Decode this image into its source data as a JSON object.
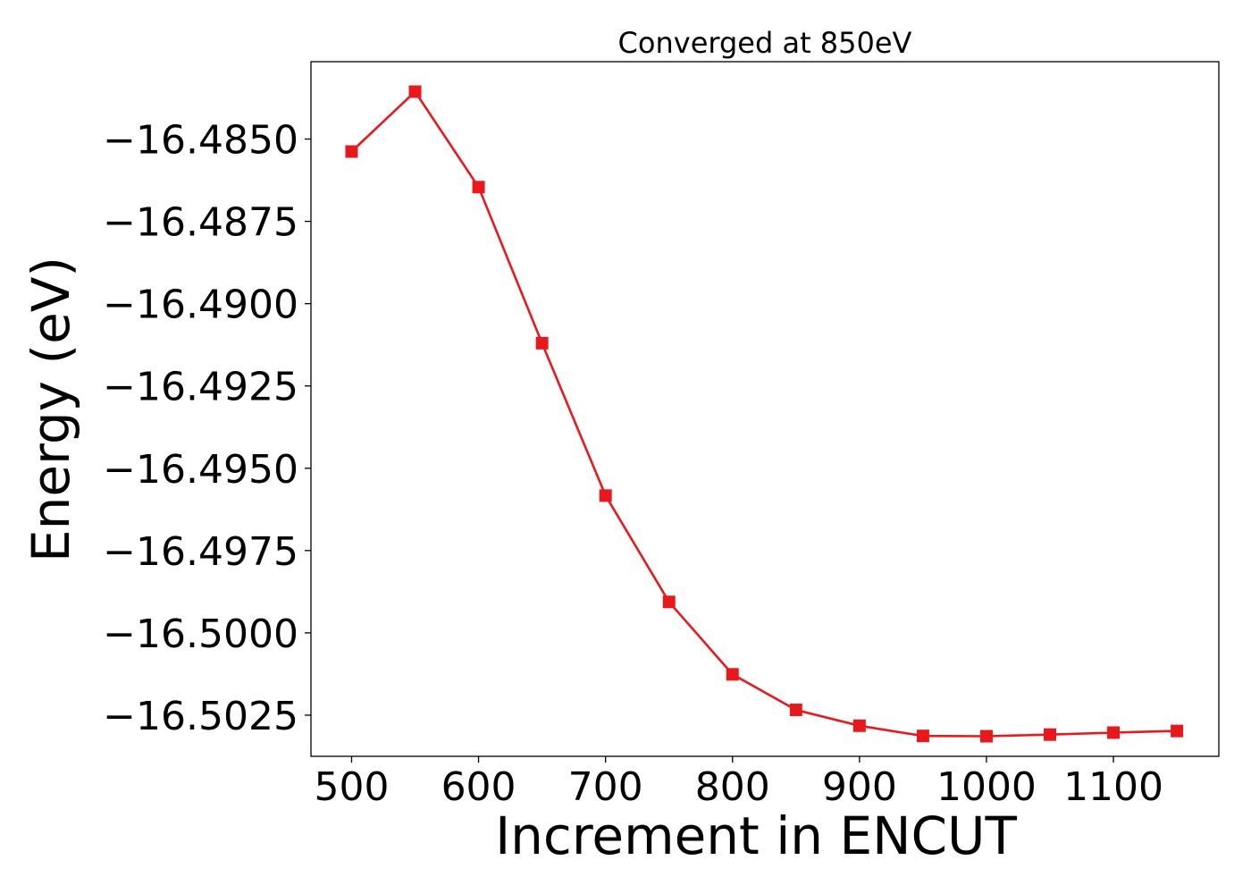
{
  "chart_data": {
    "type": "line",
    "title": "Converged at 850eV",
    "xlabel": "Increment in ENCUT",
    "ylabel": "Energy (eV)",
    "xlim": [
      468,
      1183
    ],
    "ylim": [
      -16.50375,
      -16.48265
    ],
    "x_ticks": [
      500,
      600,
      700,
      800,
      900,
      1000,
      1100
    ],
    "x_tick_labels": [
      "500",
      "600",
      "700",
      "800",
      "900",
      "1000",
      "1100"
    ],
    "y_ticks": [
      -16.485,
      -16.4875,
      -16.49,
      -16.4925,
      -16.495,
      -16.4975,
      -16.5,
      -16.5025
    ],
    "y_tick_labels": [
      "−16.4850",
      "−16.4875",
      "−16.4900",
      "−16.4925",
      "−16.4950",
      "−16.4975",
      "−16.5000",
      "−16.5025"
    ],
    "grid": false,
    "series": [
      {
        "color": "#e8191c",
        "marker": "square",
        "x": [
          500,
          550,
          600,
          650,
          700,
          750,
          800,
          850,
          900,
          950,
          1000,
          1050,
          1100,
          1150
        ],
        "y": [
          -16.48538,
          -16.48356,
          -16.48646,
          -16.4912,
          -16.49583,
          -16.49906,
          -16.50126,
          -16.50234,
          -16.50282,
          -16.50313,
          -16.50314,
          -16.50309,
          -16.50303,
          -16.50298
        ]
      }
    ]
  }
}
